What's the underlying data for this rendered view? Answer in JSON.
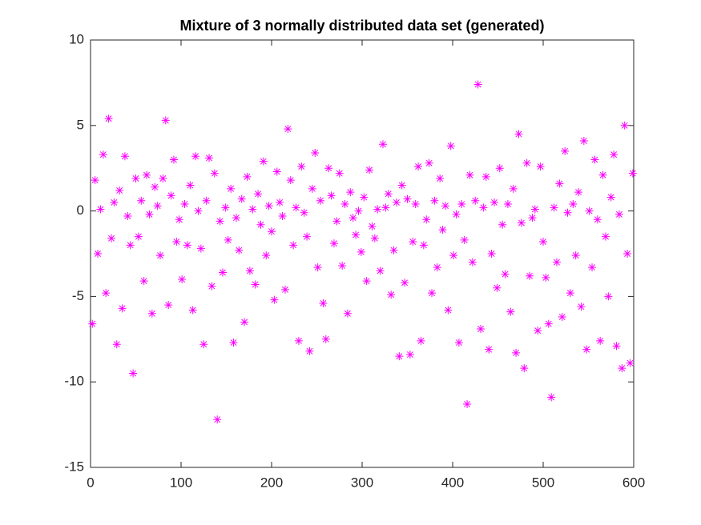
{
  "chart_data": {
    "type": "scatter",
    "title": "Mixture of 3 normally distributed data set (generated)",
    "marker": "asterisk",
    "color": "#ff00ff",
    "grid": false,
    "xlim": [
      0,
      600
    ],
    "xticks": [
      0,
      100,
      200,
      300,
      400,
      500,
      600
    ],
    "ylim": [
      -15,
      10
    ],
    "yticks": [
      -15,
      -10,
      -5,
      0,
      5,
      10
    ],
    "x": [
      2,
      5,
      8,
      11,
      14,
      17,
      20,
      23,
      26,
      29,
      32,
      35,
      38,
      41,
      44,
      47,
      50,
      53,
      56,
      59,
      62,
      65,
      68,
      71,
      74,
      77,
      80,
      83,
      86,
      89,
      92,
      95,
      98,
      101,
      104,
      107,
      110,
      113,
      116,
      119,
      122,
      125,
      128,
      131,
      134,
      137,
      140,
      143,
      146,
      149,
      152,
      155,
      158,
      161,
      164,
      167,
      170,
      173,
      176,
      179,
      182,
      185,
      188,
      191,
      194,
      197,
      200,
      203,
      206,
      209,
      212,
      215,
      218,
      221,
      224,
      227,
      230,
      233,
      236,
      239,
      242,
      245,
      248,
      251,
      254,
      257,
      260,
      263,
      266,
      269,
      272,
      275,
      278,
      281,
      284,
      287,
      290,
      293,
      296,
      299,
      302,
      305,
      308,
      311,
      314,
      317,
      320,
      323,
      326,
      329,
      332,
      335,
      338,
      341,
      344,
      347,
      350,
      353,
      356,
      359,
      362,
      365,
      368,
      371,
      374,
      377,
      380,
      383,
      386,
      389,
      392,
      395,
      398,
      401,
      404,
      407,
      410,
      413,
      416,
      419,
      422,
      425,
      428,
      431,
      434,
      437,
      440,
      443,
      446,
      449,
      452,
      455,
      458,
      461,
      464,
      467,
      470,
      473,
      476,
      479,
      482,
      485,
      488,
      491,
      494,
      497,
      500,
      503,
      506,
      509,
      512,
      515,
      518,
      521,
      524,
      527,
      530,
      533,
      536,
      539,
      542,
      545,
      548,
      551,
      554,
      557,
      560,
      563,
      566,
      569,
      572,
      575,
      578,
      581,
      584,
      587,
      590,
      593,
      596,
      599
    ],
    "values": [
      -6.6,
      1.8,
      -2.5,
      0.1,
      3.3,
      -4.8,
      5.4,
      -1.6,
      0.5,
      -7.8,
      1.2,
      -5.7,
      3.2,
      -0.3,
      -2.0,
      -9.5,
      1.9,
      -1.5,
      0.6,
      -4.1,
      2.1,
      -0.2,
      -6.0,
      1.4,
      0.3,
      -2.6,
      1.9,
      5.3,
      -5.5,
      0.9,
      3.0,
      -1.8,
      -0.5,
      -4.0,
      0.4,
      -2.0,
      1.5,
      -5.8,
      3.2,
      0.0,
      -2.2,
      -7.8,
      0.6,
      3.1,
      -4.4,
      2.2,
      -12.2,
      -0.6,
      -3.6,
      0.2,
      -1.7,
      1.3,
      -7.7,
      -0.4,
      -2.3,
      0.7,
      -6.5,
      2.0,
      -3.5,
      0.1,
      -4.3,
      1.0,
      -0.8,
      2.9,
      -2.6,
      0.3,
      -1.2,
      -5.2,
      2.3,
      0.5,
      -0.3,
      -4.6,
      4.8,
      1.8,
      -2.0,
      0.2,
      -7.6,
      2.6,
      -0.1,
      -1.5,
      -8.2,
      1.3,
      3.4,
      -3.3,
      0.6,
      -5.4,
      -7.5,
      2.5,
      0.9,
      -1.9,
      -0.6,
      2.2,
      -3.2,
      0.4,
      -6.0,
      1.1,
      -0.4,
      -1.4,
      0.0,
      -2.4,
      0.8,
      -4.1,
      2.4,
      -0.9,
      -1.6,
      0.1,
      -3.5,
      3.9,
      0.2,
      1.0,
      -4.9,
      -2.3,
      0.5,
      -8.5,
      1.5,
      -4.2,
      0.7,
      -8.4,
      -1.8,
      0.4,
      2.6,
      -7.6,
      -2.0,
      -0.5,
      2.8,
      -4.8,
      0.6,
      -3.3,
      1.9,
      -1.1,
      0.3,
      -5.8,
      3.8,
      -2.6,
      -0.2,
      -7.7,
      0.4,
      -1.7,
      -11.3,
      2.1,
      -3.0,
      0.6,
      7.4,
      -6.9,
      0.2,
      2.0,
      -8.1,
      -2.5,
      0.5,
      -4.5,
      2.5,
      -0.8,
      -3.7,
      0.4,
      -5.9,
      1.3,
      -8.3,
      4.5,
      -0.7,
      -9.2,
      2.8,
      -3.8,
      -0.4,
      0.1,
      -7.0,
      2.6,
      -1.8,
      -3.9,
      -6.6,
      -10.9,
      0.2,
      -3.0,
      1.6,
      -6.2,
      3.5,
      -0.1,
      -4.8,
      0.4,
      -2.6,
      1.1,
      -5.6,
      4.1,
      -8.1,
      0.0,
      -3.3,
      3.0,
      -0.5,
      -7.6,
      2.1,
      -1.5,
      -5.0,
      0.8,
      3.3,
      -7.9,
      -0.2,
      -9.2,
      5.0,
      -2.5,
      -8.9,
      2.2
    ]
  }
}
